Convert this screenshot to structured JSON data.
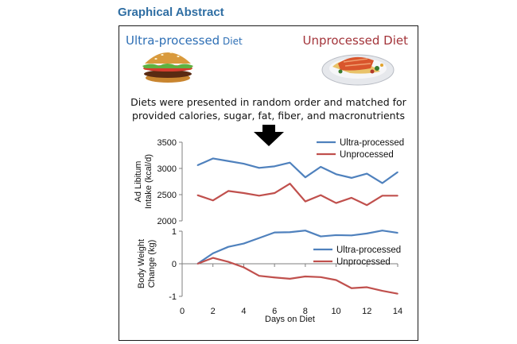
{
  "heading": "Graphical Abstract",
  "diets": {
    "ultra_label_main": "Ultra-processed",
    "ultra_label_small": " Diet",
    "unprocessed_label": "Unprocessed Diet",
    "ultra_icon": "hamburger-icon",
    "unprocessed_icon": "salmon-plate-icon"
  },
  "summary": {
    "line1": "Diets were presented in random order and matched for",
    "line2": "provided calories, sugar, fat, fiber, and macronutrients"
  },
  "colors": {
    "ultra": "#4f81bd",
    "unprocessed": "#c0504d"
  },
  "chart_data": [
    {
      "type": "line",
      "ylabel": "Ad Libitum Intake (kcal/d)",
      "ylabel_lines": [
        "Ad Libitum",
        "Intake (kcal/d)"
      ],
      "ylim": [
        2000,
        3500
      ],
      "yticks": [
        2000,
        2500,
        3000,
        3500
      ],
      "x": [
        1,
        2,
        3,
        4,
        5,
        6,
        7,
        8,
        9,
        10,
        11,
        12,
        13,
        14
      ],
      "legend": "top-right",
      "series": [
        {
          "name": "Ultra-processed",
          "values": [
            3060,
            3190,
            3140,
            3090,
            3010,
            3040,
            3110,
            2830,
            3030,
            2890,
            2820,
            2900,
            2720,
            2930
          ]
        },
        {
          "name": "Unprocessed",
          "values": [
            2490,
            2390,
            2570,
            2530,
            2480,
            2530,
            2710,
            2370,
            2490,
            2340,
            2440,
            2300,
            2480,
            2480
          ]
        }
      ]
    },
    {
      "type": "line",
      "xlabel": "Days on Diet",
      "ylabel": "Body Weight Change (kg)",
      "ylabel_lines": [
        "Body Weight",
        "Change (kg)"
      ],
      "xlim": [
        0,
        14
      ],
      "xticks": [
        0,
        2,
        4,
        6,
        8,
        10,
        12,
        14
      ],
      "ylim": [
        -1,
        1
      ],
      "yticks": [
        -1,
        0,
        1
      ],
      "x": [
        1,
        2,
        3,
        4,
        5,
        6,
        7,
        8,
        9,
        10,
        11,
        12,
        13,
        14
      ],
      "legend": "right",
      "series": [
        {
          "name": "Ultra-processed",
          "values": [
            0,
            0.32,
            0.52,
            0.62,
            0.79,
            0.96,
            0.97,
            1.02,
            0.84,
            0.88,
            0.87,
            0.93,
            1.02,
            0.95
          ]
        },
        {
          "name": "Unprocessed",
          "values": [
            0,
            0.18,
            0.06,
            -0.11,
            -0.37,
            -0.42,
            -0.46,
            -0.39,
            -0.41,
            -0.5,
            -0.75,
            -0.72,
            -0.83,
            -0.92
          ]
        }
      ]
    }
  ]
}
